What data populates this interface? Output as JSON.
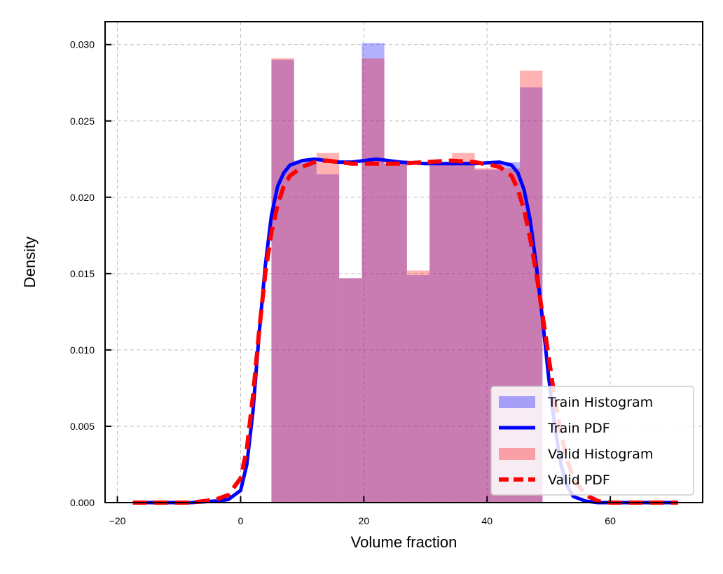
{
  "chart_data": {
    "type": "bar",
    "xlabel": "Volume fraction",
    "ylabel": "Density",
    "xlim": [
      -22,
      75
    ],
    "ylim": [
      0,
      0.0315
    ],
    "grid": true,
    "legend_position": "bottom-right",
    "x_ticks": [
      -20,
      0,
      20,
      40,
      60
    ],
    "x_tick_labels": [
      "−20",
      "0",
      "20",
      "40",
      "60"
    ],
    "y_ticks": [
      0,
      0.005,
      0.01,
      0.015,
      0.02,
      0.025,
      0.03
    ],
    "y_tick_labels": [
      "0.000",
      "0.005",
      "0.010",
      "0.015",
      "0.020",
      "0.025",
      "0.030"
    ],
    "bin_edges": [
      5.0,
      8.67,
      12.33,
      16.0,
      19.67,
      23.33,
      27.0,
      30.67,
      34.33,
      38.0,
      41.67,
      45.33,
      49.0
    ],
    "series": [
      {
        "name": "Train Histogram",
        "kind": "histogram",
        "color": "#0000ff",
        "opacity": 0.3,
        "values": [
          0.029,
          0.0224,
          0.0215,
          0.0147,
          0.0301,
          0.0222,
          0.0149,
          0.0222,
          0.0222,
          0.0218,
          0.0223,
          0.0272
        ]
      },
      {
        "name": "Valid Histogram",
        "kind": "histogram",
        "color": "#ff0000",
        "opacity": 0.3,
        "values": [
          0.0291,
          0.0222,
          0.0229,
          0.0147,
          0.0291,
          0.0222,
          0.0152,
          0.0222,
          0.0229,
          0.0219,
          0.0219,
          0.0283
        ]
      },
      {
        "name": "Train PDF",
        "kind": "line",
        "color": "#0000ff",
        "style": "solid",
        "x": [
          -17.5,
          -8,
          -4,
          -2,
          0,
          1,
          2,
          3,
          4,
          5,
          6,
          7,
          8,
          10,
          12,
          14,
          16,
          18,
          22,
          26,
          30,
          34,
          38,
          42,
          44,
          45,
          46,
          47,
          48,
          49,
          50,
          51,
          52,
          53,
          54,
          56,
          58,
          60,
          64,
          71
        ],
        "y": [
          0,
          0,
          0.0001,
          0.0002,
          0.0008,
          0.0025,
          0.006,
          0.011,
          0.0155,
          0.0188,
          0.0207,
          0.0216,
          0.0221,
          0.0224,
          0.0225,
          0.0224,
          0.0223,
          0.0223,
          0.0225,
          0.0223,
          0.0222,
          0.0222,
          0.0222,
          0.0223,
          0.0221,
          0.0216,
          0.0205,
          0.0185,
          0.0155,
          0.012,
          0.0082,
          0.005,
          0.0025,
          0.0011,
          0.0004,
          0.0001,
          0,
          0,
          0,
          0
        ]
      },
      {
        "name": "Valid PDF",
        "kind": "line",
        "color": "#ff0000",
        "style": "dashed",
        "x": [
          -17.5,
          -8,
          -4,
          -2,
          0,
          1,
          2,
          3,
          4,
          5,
          6,
          7,
          8,
          10,
          12,
          14,
          16,
          18,
          22,
          26,
          30,
          34,
          38,
          42,
          44,
          45,
          46,
          47,
          48,
          49,
          50,
          51,
          52,
          53,
          54,
          56,
          58,
          60,
          64,
          71
        ],
        "y": [
          0,
          0,
          0.0002,
          0.0005,
          0.0016,
          0.0035,
          0.007,
          0.0112,
          0.015,
          0.0177,
          0.0195,
          0.0207,
          0.0214,
          0.022,
          0.0223,
          0.0224,
          0.0223,
          0.0222,
          0.0222,
          0.0222,
          0.0223,
          0.0224,
          0.0223,
          0.022,
          0.0214,
          0.0205,
          0.0192,
          0.0173,
          0.015,
          0.0123,
          0.0095,
          0.0068,
          0.0045,
          0.0028,
          0.0016,
          0.0005,
          0.0001,
          0,
          0,
          0
        ]
      }
    ],
    "legend": [
      {
        "label": "Train Histogram",
        "kind": "patch",
        "color": "#0000ff"
      },
      {
        "label": "Train PDF",
        "kind": "line",
        "color": "#0000ff",
        "style": "solid"
      },
      {
        "label": "Valid Histogram",
        "kind": "patch",
        "color": "#ff0000"
      },
      {
        "label": "Valid PDF",
        "kind": "line",
        "color": "#ff0000",
        "style": "dashed"
      }
    ]
  }
}
